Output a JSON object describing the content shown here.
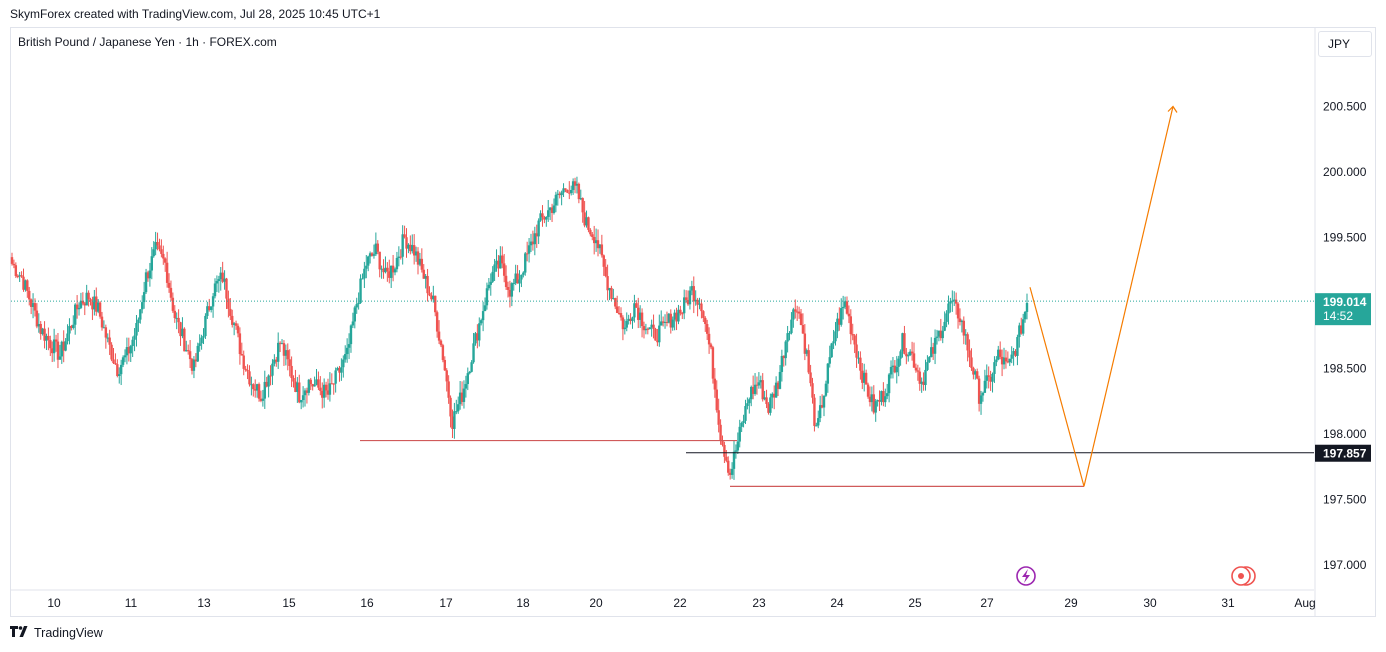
{
  "header": {
    "attribution": "SkymForex created with TradingView.com, Jul 28, 2025 10:45 UTC+1",
    "symbol_line": "British Pound / Japanese Yen · 1h · FOREX.com"
  },
  "currency_button": "JPY",
  "footer": {
    "brand": "TradingView",
    "logo_icon": "tradingview-logo-icon"
  },
  "colors": {
    "up": "#26a69a",
    "down": "#ef5350",
    "projection": "#f57c00",
    "support": "#d05a5a",
    "price_badge": "#26a69a"
  },
  "chart_data": {
    "type": "candlestick",
    "title": "British Pound / Japanese Yen · 1h · FOREX.com",
    "y_axis": {
      "ticks": [
        "200.500",
        "200.000",
        "199.500",
        "199.000",
        "198.500",
        "198.000",
        "197.500",
        "197.000"
      ],
      "tick_values": [
        200.5,
        200.0,
        199.5,
        199.0,
        198.5,
        198.0,
        197.5,
        197.0
      ],
      "range": [
        196.82,
        201.0
      ]
    },
    "x_axis": {
      "labels": [
        "10",
        "11",
        "13",
        "15",
        "16",
        "17",
        "18",
        "20",
        "22",
        "23",
        "24",
        "25",
        "27",
        "29",
        "30",
        "31",
        "Aug"
      ]
    },
    "current_price": {
      "label": "199.014",
      "value": 199.014,
      "countdown": "14:52"
    },
    "marked_level": {
      "label": "197.857",
      "value": 197.857
    },
    "support_levels": [
      {
        "value": 197.95,
        "from": "16",
        "to": "23"
      },
      {
        "value": 197.6,
        "to": "29"
      }
    ],
    "projection": {
      "points": [
        {
          "at": "27",
          "value": 199.12
        },
        {
          "at": "29",
          "value": 197.6
        },
        {
          "at": "30",
          "value": 200.5
        }
      ]
    },
    "series_closes": [
      199.3,
      199.2,
      199.0,
      198.8,
      198.7,
      198.6,
      198.8,
      199.0,
      199.05,
      198.95,
      198.7,
      198.5,
      198.6,
      198.8,
      199.2,
      199.4,
      199.3,
      198.9,
      198.7,
      198.5,
      198.8,
      199.1,
      199.2,
      198.9,
      198.6,
      198.4,
      198.3,
      198.5,
      198.7,
      198.5,
      198.3,
      198.4,
      198.35,
      198.3,
      198.45,
      198.6,
      199.0,
      199.3,
      199.4,
      199.2,
      199.3,
      199.5,
      199.4,
      199.2,
      199.0,
      198.6,
      198.1,
      198.3,
      198.6,
      198.9,
      199.2,
      199.3,
      199.1,
      199.2,
      199.4,
      199.6,
      199.7,
      199.8,
      199.9,
      199.85,
      199.6,
      199.5,
      199.2,
      199.0,
      198.8,
      199.0,
      198.85,
      198.75,
      198.8,
      198.9,
      198.95,
      199.1,
      199.0,
      198.6,
      198.0,
      197.7,
      198.0,
      198.3,
      198.4,
      198.2,
      198.4,
      198.8,
      199.0,
      198.6,
      198.0,
      198.4,
      198.8,
      199.0,
      198.7,
      198.4,
      198.2,
      198.3,
      198.5,
      198.7,
      198.6,
      198.4,
      198.6,
      198.8,
      199.0,
      198.9,
      198.6,
      198.3,
      198.4,
      198.6,
      198.5,
      198.7,
      199.0
    ]
  }
}
